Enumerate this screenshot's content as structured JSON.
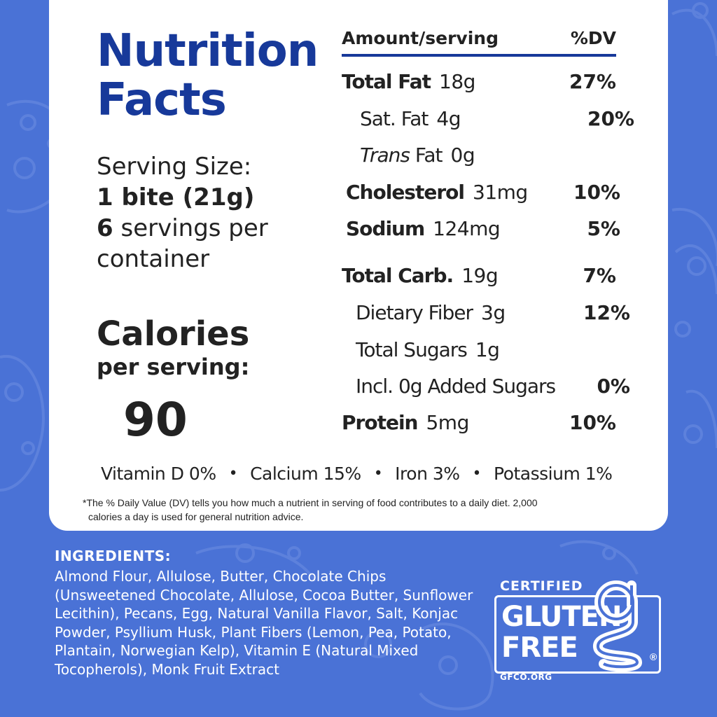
{
  "panel": {
    "title_line1": "Nutrition",
    "title_line2": "Facts",
    "serving_label": "Serving Size:",
    "serving_size": "1 bite (21g)",
    "servings_count": "6",
    "servings_text": " servings per container",
    "calories_title": "Calories",
    "calories_sub": "per serving:",
    "calories_value": "90"
  },
  "table": {
    "header_amount": "Amount/serving",
    "header_dv": "%DV",
    "rows": [
      {
        "label": "Total Fat",
        "amount": "18g",
        "dv": "27%"
      },
      {
        "label": "Sat. Fat",
        "amount": "4g",
        "dv": "20%"
      },
      {
        "label_italic": "Trans",
        "label": " Fat",
        "amount": "0g",
        "dv": ""
      },
      {
        "label": "Cholesterol",
        "amount": "31mg",
        "dv": "10%"
      },
      {
        "label": "Sodium",
        "amount": "124mg",
        "dv": "5%"
      },
      {
        "label": "Total Carb.",
        "amount": "19g",
        "dv": "7%"
      },
      {
        "label": "Dietary Fiber",
        "amount": "3g",
        "dv": "12%"
      },
      {
        "label": "Total Sugars",
        "amount": "1g",
        "dv": ""
      },
      {
        "label": "Incl. 0g Added Sugars",
        "amount": "",
        "dv": "0%"
      },
      {
        "label": "Protein",
        "amount": "5mg",
        "dv": "10%"
      }
    ]
  },
  "vitamins": [
    "Vitamin D 0%",
    "Calcium 15%",
    "Iron 3%",
    "Potassium 1%"
  ],
  "vitamin_separator": "•",
  "footnote_line1": "*The % Daily Value (DV) tells you how much a nutrient in serving of food contributes to a daily diet. 2,000",
  "footnote_line2": "calories a day is used for general nutrition advice.",
  "ingredients": {
    "title": "INGREDIENTS:",
    "text": "Almond Flour, Allulose, Butter, Chocolate Chips (Unsweetened Chocolate, Allulose, Cocoa Butter, Sunflower Lecithin), Pecans, Egg, Natural Vanilla Flavor, Salt, Konjac Powder, Psyllium Husk, Plant Fibers (Lemon, Pea, Potato, Plantain, Norwegian Kelp), Vitamin E (Natural Mixed Tocopherols), Monk Fruit Extract"
  },
  "badge": {
    "certified": "CERTIFIED",
    "word1": "GLUTEN",
    "word2": "FREE",
    "url": "GFCO.ORG",
    "registered": "®",
    "icon": "gluten-free-g-logo"
  },
  "colors": {
    "background": "#4a72d6",
    "title_blue": "#17399a",
    "text": "#222222",
    "panel": "#ffffff"
  }
}
